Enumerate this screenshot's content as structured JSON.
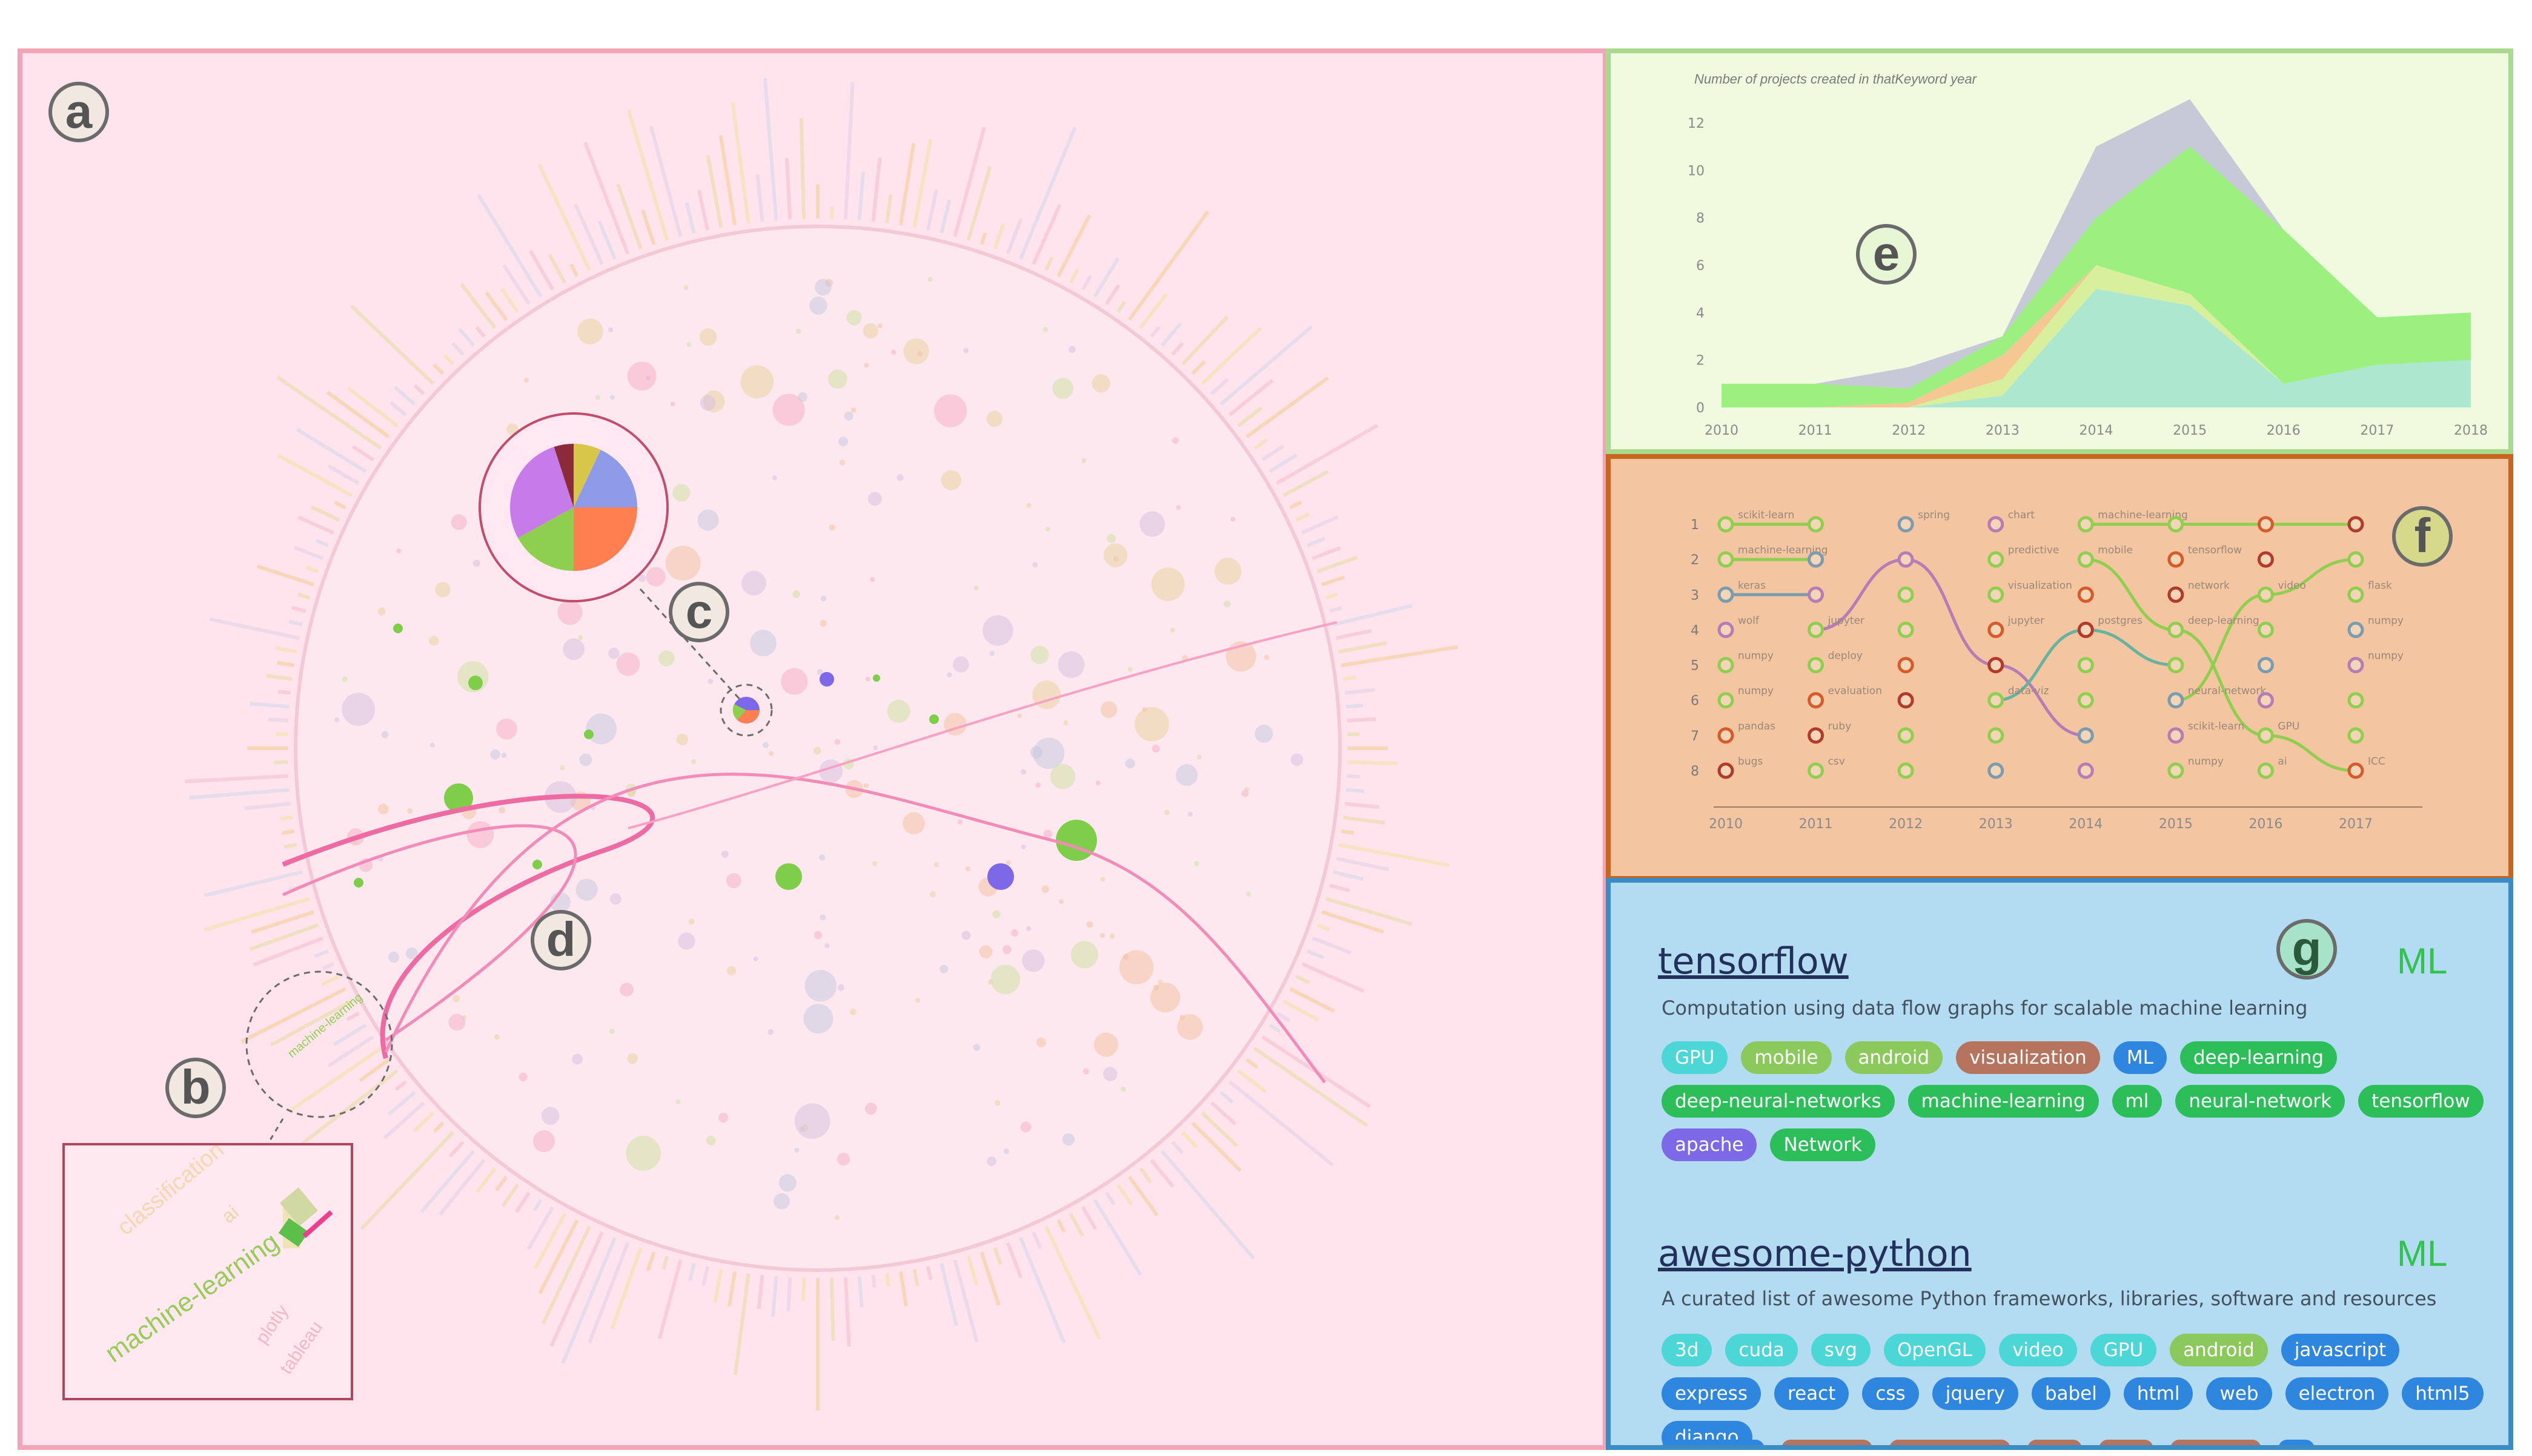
{
  "panel_labels": {
    "a": "a",
    "b": "b",
    "c": "c",
    "d": "d",
    "e": "e",
    "f": "f",
    "g": "g"
  },
  "panel_a": {
    "zoom_inset_labels": [
      "machine-learning",
      "classification",
      "ai",
      "plotly",
      "tableau"
    ]
  },
  "chart_data": [
    {
      "type": "area",
      "title": "Number of projects created in thatKeyword year",
      "x": [
        2010,
        2011,
        2012,
        2013,
        2014,
        2015,
        2016,
        2017,
        2018
      ],
      "xlabel": "",
      "ylabel": "",
      "ylim": [
        0,
        12
      ],
      "yticks": [
        0,
        2,
        4,
        6,
        8,
        10,
        12
      ],
      "stacked": true,
      "series": [
        {
          "color": "#a8e6cf",
          "values": [
            0,
            0,
            0,
            0.5,
            5,
            4.3,
            1,
            1.8,
            2
          ]
        },
        {
          "color": "#d6ee9a",
          "values": [
            0,
            0,
            0,
            0.7,
            1,
            0.5,
            0,
            0,
            0
          ]
        },
        {
          "color": "#f4c48e",
          "values": [
            0,
            0,
            0.2,
            1,
            0,
            0,
            0,
            0,
            0
          ]
        },
        {
          "color": "#96ef7a",
          "values": [
            1,
            1,
            0.6,
            0.8,
            2,
            6.2,
            6.5,
            2,
            2
          ]
        },
        {
          "color": "#c3c7d6",
          "values": [
            0,
            0,
            0.9,
            0,
            3,
            2,
            0,
            0,
            0
          ]
        }
      ]
    },
    {
      "type": "line",
      "title": "",
      "x": [
        2010,
        2011,
        2012,
        2013,
        2014,
        2015,
        2016,
        2017
      ],
      "yticks": [
        1,
        2,
        3,
        4,
        5,
        6,
        7,
        8
      ],
      "xlabel": "",
      "ylabel": "",
      "series": [
        {
          "color": "#8fcf4f",
          "values": [
            2,
            2,
            null,
            null,
            null,
            null,
            null,
            null
          ]
        },
        {
          "color": "#8fcf4f",
          "values": [
            1,
            1,
            null,
            null,
            1,
            1,
            1,
            1
          ]
        },
        {
          "color": "#7a9bb0",
          "values": [
            3,
            3,
            null,
            null,
            null,
            null,
            null,
            null
          ]
        },
        {
          "color": "#b67cb5",
          "values": [
            null,
            4,
            2,
            5,
            7,
            null,
            null,
            null
          ]
        },
        {
          "color": "#67b3a0",
          "values": [
            null,
            null,
            null,
            6,
            4,
            5,
            null,
            null
          ]
        },
        {
          "color": "#8fcf4f",
          "values": [
            null,
            null,
            null,
            null,
            2,
            4,
            7,
            8
          ]
        },
        {
          "color": "#8fcf4f",
          "values": [
            null,
            null,
            null,
            null,
            null,
            6,
            3,
            2
          ]
        }
      ]
    }
  ],
  "panel_e": {
    "title": "Number of projects created in thatKeyword year"
  },
  "panel_f": {
    "word_lists": [
      {
        "year": "2010",
        "words": [
          "scikit-learn",
          "machine-learning",
          "keras",
          "wolf",
          "numpy",
          "numpy",
          "pandas",
          "bugs"
        ]
      },
      {
        "year": "2011",
        "words": [
          "",
          "",
          "",
          "jupyter",
          "deploy",
          "evaluation",
          "ruby",
          "csv"
        ]
      },
      {
        "year": "2012",
        "words": [
          "spring",
          "",
          "",
          "",
          "",
          "",
          "",
          ""
        ]
      },
      {
        "year": "2013",
        "words": [
          "chart",
          "predictive",
          "visualization",
          "jupyter",
          "",
          "data-viz",
          "",
          ""
        ]
      },
      {
        "year": "2014",
        "words": [
          "machine-learning",
          "mobile",
          "",
          "postgres",
          "",
          "",
          "",
          ""
        ]
      },
      {
        "year": "2015",
        "words": [
          "",
          "tensorflow",
          "network",
          "deep-learning",
          "",
          "neural-network",
          "scikit-learn",
          "numpy"
        ]
      },
      {
        "year": "2016",
        "words": [
          "",
          "",
          "video",
          "",
          "",
          "",
          "GPU",
          "ai"
        ]
      },
      {
        "year": "2017",
        "words": [
          "",
          "",
          "flask",
          "numpy",
          "numpy",
          "",
          "",
          "ICC"
        ]
      }
    ]
  },
  "panel_g": {
    "repos": [
      {
        "name": "tensorflow",
        "category": "ML",
        "description": "Computation using data flow graphs for scalable machine learning",
        "tags": [
          {
            "label": "GPU",
            "color": "#4cd6d6"
          },
          {
            "label": "mobile",
            "color": "#8cc95c"
          },
          {
            "label": "android",
            "color": "#8cc95c"
          },
          {
            "label": "visualization",
            "color": "#b6735d"
          },
          {
            "label": "ML",
            "color": "#2f86df"
          },
          {
            "label": "deep-learning",
            "color": "#2cbf59"
          },
          {
            "label": "deep-neural-networks",
            "color": "#2cbf59"
          },
          {
            "label": "machine-learning",
            "color": "#2cbf59"
          },
          {
            "label": "ml",
            "color": "#2cbf59"
          },
          {
            "label": "neural-network",
            "color": "#2cbf59"
          },
          {
            "label": "tensorflow",
            "color": "#2cbf59"
          },
          {
            "label": "apache",
            "color": "#7d68e8"
          },
          {
            "label": "Network",
            "color": "#2cbf59"
          }
        ]
      },
      {
        "name": "awesome-python",
        "category": "ML",
        "description": "A curated list of awesome Python frameworks, libraries, software and resources",
        "tags": [
          {
            "label": "3d",
            "color": "#4cd6d6"
          },
          {
            "label": "cuda",
            "color": "#4cd6d6"
          },
          {
            "label": "svg",
            "color": "#4cd6d6"
          },
          {
            "label": "OpenGL",
            "color": "#4cd6d6"
          },
          {
            "label": "video",
            "color": "#4cd6d6"
          },
          {
            "label": "GPU",
            "color": "#4cd6d6"
          },
          {
            "label": "android",
            "color": "#8cc95c"
          },
          {
            "label": "javascript",
            "color": "#2f86df"
          },
          {
            "label": "express",
            "color": "#2f86df"
          },
          {
            "label": "react",
            "color": "#2f86df"
          },
          {
            "label": "css",
            "color": "#2f86df"
          },
          {
            "label": "jquery",
            "color": "#2f86df"
          },
          {
            "label": "babel",
            "color": "#2f86df"
          },
          {
            "label": "html",
            "color": "#2f86df"
          },
          {
            "label": "web",
            "color": "#2f86df"
          },
          {
            "label": "electron",
            "color": "#2f86df"
          },
          {
            "label": "html5",
            "color": "#2f86df"
          },
          {
            "label": "django",
            "color": "#2f86df"
          }
        ]
      }
    ]
  }
}
